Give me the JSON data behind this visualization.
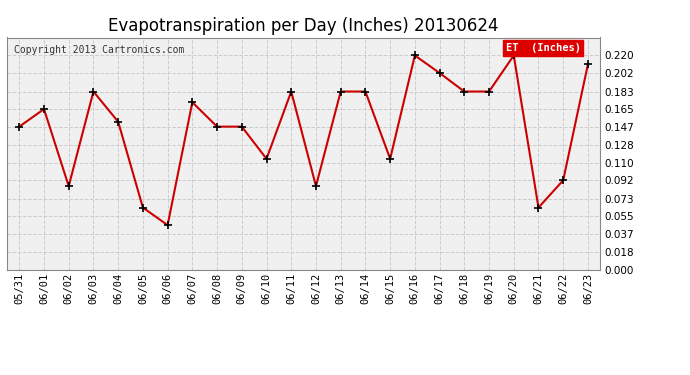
{
  "title": "Evapotranspiration per Day (Inches) 20130624",
  "copyright_text": "Copyright 2013 Cartronics.com",
  "legend_label": "ET  (Inches)",
  "legend_bg": "#dd0000",
  "legend_text_color": "#ffffff",
  "dates": [
    "05/31",
    "06/01",
    "06/02",
    "06/03",
    "06/04",
    "06/05",
    "06/06",
    "06/07",
    "06/08",
    "06/09",
    "06/10",
    "06/11",
    "06/12",
    "06/13",
    "06/14",
    "06/15",
    "06/16",
    "06/17",
    "06/18",
    "06/19",
    "06/20",
    "06/21",
    "06/22",
    "06/23"
  ],
  "values": [
    0.147,
    0.165,
    0.086,
    0.183,
    0.152,
    0.064,
    0.046,
    0.172,
    0.147,
    0.147,
    0.114,
    0.183,
    0.086,
    0.183,
    0.183,
    0.114,
    0.22,
    0.202,
    0.183,
    0.183,
    0.22,
    0.064,
    0.092,
    0.211
  ],
  "line_color": "#cc0000",
  "marker": "+",
  "marker_size": 6,
  "line_width": 1.5,
  "bg_color": "#f0f0f0",
  "grid_color": "#cccccc",
  "ylim": [
    0.0,
    0.2384
  ],
  "yticks": [
    0.0,
    0.018,
    0.037,
    0.055,
    0.073,
    0.092,
    0.11,
    0.128,
    0.147,
    0.165,
    0.183,
    0.202,
    0.22
  ],
  "title_fontsize": 12,
  "axis_fontsize": 7.5,
  "copyright_fontsize": 7.0
}
